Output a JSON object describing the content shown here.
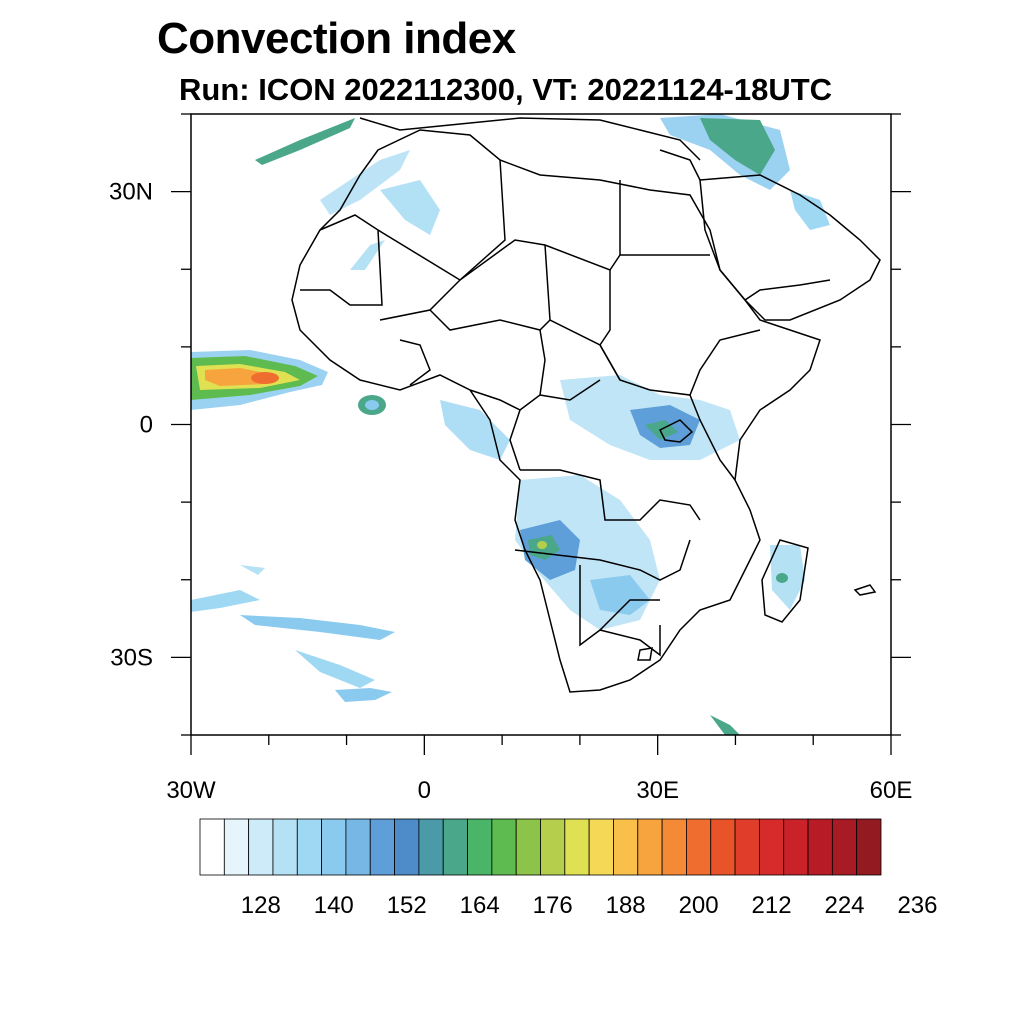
{
  "title": "Convection index",
  "subtitle": "Run: ICON 2022112300,  VT: 20221124-18UTC",
  "map": {
    "lat_labels": [
      {
        "lat": 30,
        "label": "30N"
      },
      {
        "lat": 0,
        "label": "0"
      },
      {
        "lat": -30,
        "label": "30S"
      }
    ],
    "lon_labels": [
      {
        "lon": -30,
        "label": "30W"
      },
      {
        "lon": 0,
        "label": "0"
      },
      {
        "lon": 30,
        "label": "30E"
      },
      {
        "lon": 60,
        "label": "60E"
      }
    ],
    "lon_range": [
      -30,
      60
    ],
    "lat_range": [
      -40,
      40
    ]
  },
  "colorbar": {
    "colors": [
      "#ffffff",
      "#e6f5fc",
      "#cdebf8",
      "#b5e1f5",
      "#9fd8f3",
      "#8acaee",
      "#76b7e6",
      "#5f9fd9",
      "#4d8cc9",
      "#4a9aa8",
      "#4ba789",
      "#4ab569",
      "#5dbb50",
      "#8cc449",
      "#b5cf4c",
      "#dfe152",
      "#f5d956",
      "#f8c04a",
      "#f7a43e",
      "#f48936",
      "#ef6d2e",
      "#e9532a",
      "#e03d2a",
      "#d72a2b",
      "#c92229",
      "#b71c26",
      "#a81a24",
      "#921a20"
    ],
    "labels": [
      "128",
      "140",
      "152",
      "164",
      "176",
      "188",
      "200",
      "212",
      "224",
      "236"
    ]
  }
}
